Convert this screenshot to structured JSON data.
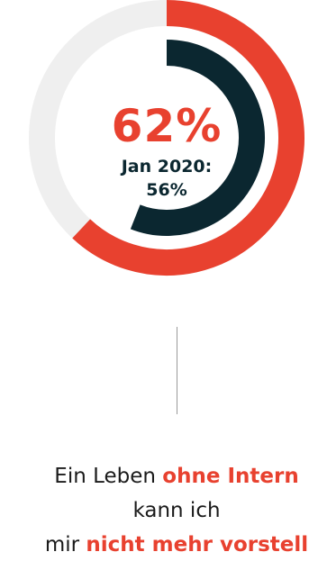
{
  "colors": {
    "accent": "#e8412f",
    "dark": "#0b2730",
    "track": "#efefef",
    "text": "#1b1b1b",
    "line": "#9a9a9a"
  },
  "chart_data": {
    "type": "donut",
    "series": [
      {
        "value": 62,
        "unit": "%",
        "color": "#e8412f"
      },
      {
        "value": 56,
        "unit": "%",
        "color": "#0b2730"
      }
    ],
    "center_value": "62%",
    "center_label": "Jan 2020:\n56%"
  },
  "caption": {
    "line1_a": "Ein Leben ",
    "line1_b": "ohne Intern",
    "line2": "kann ich",
    "line3_a": "mir ",
    "line3_b": "nicht mehr vorstell"
  }
}
